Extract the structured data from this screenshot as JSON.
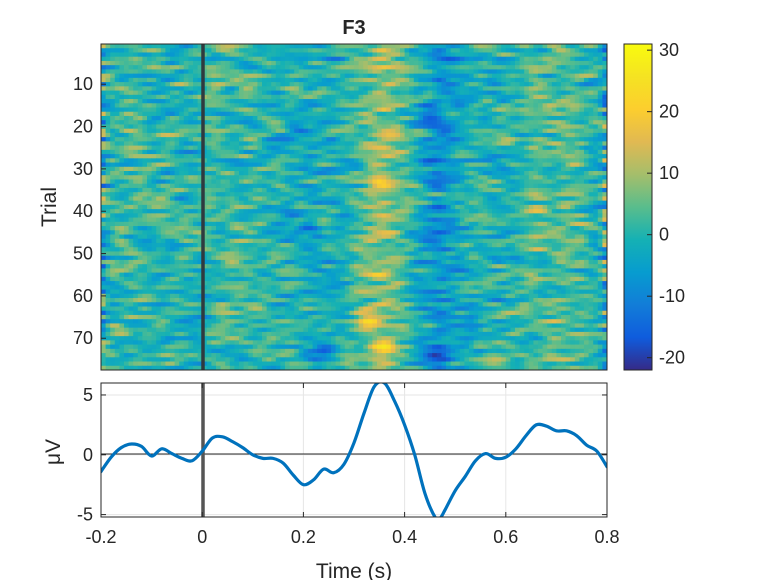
{
  "chart_data": [
    {
      "type": "heatmap",
      "title": "F3",
      "xlabel": "",
      "ylabel": "Trial",
      "xlim": [
        -0.2,
        0.8
      ],
      "ylim": [
        1,
        77
      ],
      "y_direction": "reversed",
      "x_ticks_shown": false,
      "yticks": [
        10,
        20,
        30,
        40,
        50,
        60,
        70
      ],
      "ytick_labels": [
        "10",
        "20",
        "30",
        "40",
        "50",
        "60",
        "70"
      ],
      "n_trials": 77,
      "colormap": "parula",
      "color_limits": [
        -22,
        31
      ],
      "colorbar": {
        "ticks": [
          30,
          20,
          10,
          0,
          -10,
          -20
        ],
        "tick_labels": [
          "30",
          "20",
          "10",
          "0",
          "-10",
          "-20"
        ]
      },
      "event_marker_x": 0,
      "event_marker_color": "#2f3a3f",
      "hotspots": [
        {
          "t": 0.35,
          "trial": 33,
          "value": 24
        },
        {
          "t": 0.33,
          "trial": 66,
          "value": 26
        },
        {
          "t": 0.36,
          "trial": 72,
          "value": 28
        },
        {
          "t": 0.37,
          "trial": 22,
          "value": 18
        },
        {
          "t": 0.58,
          "trial": 75,
          "value": 14
        },
        {
          "t": 0.46,
          "trial": 74,
          "value": -22
        },
        {
          "t": 0.24,
          "trial": 73,
          "value": -18
        },
        {
          "t": 0.45,
          "trial": 18,
          "value": -17
        }
      ]
    },
    {
      "type": "line",
      "title": "",
      "xlabel": "Time (s)",
      "ylabel": "μV",
      "xlim": [
        -0.2,
        0.8
      ],
      "ylim": [
        -5.2,
        6
      ],
      "grid": true,
      "xticks": [
        -0.2,
        0,
        0.2,
        0.4,
        0.6,
        0.8
      ],
      "xtick_labels": [
        "-0.2",
        "0",
        "0.2",
        "0.4",
        "0.6",
        "0.8"
      ],
      "yticks": [
        -5,
        0,
        5
      ],
      "ytick_labels": [
        "-5",
        "0",
        "5"
      ],
      "zero_line": true,
      "event_marker_x": 0,
      "series": [
        {
          "color": "#0072BD",
          "x": [
            -0.2,
            -0.18,
            -0.16,
            -0.14,
            -0.12,
            -0.1,
            -0.08,
            -0.06,
            -0.04,
            -0.02,
            0.0,
            0.02,
            0.04,
            0.06,
            0.08,
            0.1,
            0.12,
            0.14,
            0.16,
            0.18,
            0.2,
            0.22,
            0.24,
            0.26,
            0.28,
            0.3,
            0.32,
            0.34,
            0.36,
            0.38,
            0.4,
            0.42,
            0.44,
            0.46,
            0.47,
            0.48,
            0.5,
            0.52,
            0.54,
            0.56,
            0.58,
            0.6,
            0.62,
            0.64,
            0.66,
            0.68,
            0.7,
            0.72,
            0.74,
            0.76,
            0.78,
            0.8
          ],
          "values": [
            -1.4,
            -0.2,
            0.6,
            0.9,
            0.7,
            -0.1,
            0.5,
            0.1,
            -0.3,
            -0.5,
            0.3,
            1.4,
            1.5,
            1.1,
            0.6,
            0.0,
            -0.3,
            -0.3,
            -0.7,
            -1.7,
            -2.5,
            -2.1,
            -1.2,
            -1.5,
            -0.8,
            1.0,
            3.5,
            5.7,
            6.0,
            4.5,
            2.5,
            0.0,
            -3.2,
            -5.2,
            -5.3,
            -4.6,
            -3.0,
            -1.8,
            -0.5,
            0.1,
            -0.3,
            -0.2,
            0.5,
            1.6,
            2.5,
            2.4,
            2.0,
            2.0,
            1.6,
            0.8,
            0.3,
            -1.0
          ]
        }
      ]
    }
  ]
}
